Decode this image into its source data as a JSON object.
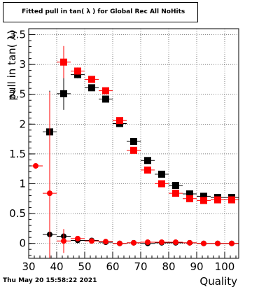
{
  "footer_text": "Thu May 20 15:58:22 2021",
  "chart_data": {
    "type": "scatter",
    "title": "Fitted pull in tan( λ ) for Global Rec All NoHits",
    "xlabel": "Quality",
    "ylabel": "pull in tan( λ)",
    "xlim": [
      30,
      105
    ],
    "ylim": [
      -0.25,
      3.6
    ],
    "xticks": [
      30,
      40,
      50,
      60,
      70,
      80,
      90,
      100
    ],
    "yticks": [
      0,
      0.5,
      1,
      1.5,
      2,
      2.5,
      3,
      3.5
    ],
    "ytick_labels": [
      "0",
      "0.5",
      "1",
      "1.5",
      "2",
      "2.5",
      "3",
      "3.5"
    ],
    "grid": true,
    "x_bin_half_width": 2.5,
    "marker_size": 10,
    "series": [
      {
        "color": "#000000",
        "marker": "square",
        "x": [
          37.5,
          42.5,
          47.5,
          52.5,
          57.5,
          62.5,
          67.5,
          72.5,
          77.5,
          82.5,
          87.5,
          92.5,
          97.5,
          102.5
        ],
        "y": [
          1.87,
          2.51,
          2.83,
          2.61,
          2.42,
          2.01,
          1.71,
          1.39,
          1.16,
          0.97,
          0.83,
          0.79,
          0.77,
          0.77
        ],
        "yerr": [
          0.69,
          0.27,
          0.06,
          0.05,
          0.04,
          0.03,
          0.03,
          0.03,
          0.02,
          0.02,
          0.02,
          0.02,
          0.02,
          0.02
        ]
      },
      {
        "color": "#ff0000",
        "marker": "square",
        "x": [
          42.5,
          47.5,
          52.5,
          57.5,
          62.5,
          67.5,
          72.5,
          77.5,
          82.5,
          87.5,
          92.5,
          97.5,
          102.5
        ],
        "y": [
          3.04,
          2.89,
          2.75,
          2.56,
          2.06,
          1.56,
          1.23,
          1.0,
          0.84,
          0.75,
          0.72,
          0.73,
          0.73
        ],
        "yerr": [
          0.27,
          0.06,
          0.05,
          0.04,
          0.03,
          0.03,
          0.03,
          0.02,
          0.02,
          0.02,
          0.02,
          0.02,
          0.02
        ]
      },
      {
        "color": "#000000",
        "marker": "circle",
        "x": [
          37.5,
          42.5,
          47.5,
          52.5,
          57.5,
          62.5,
          67.5,
          72.5,
          77.5,
          82.5,
          87.5,
          92.5,
          97.5,
          102.5
        ],
        "y": [
          0.15,
          0.12,
          0.05,
          0.05,
          0.02,
          0.0,
          0.01,
          0.0,
          0.01,
          0.01,
          0.01,
          0.0,
          0.0,
          0.0
        ],
        "yerr": [
          0.4,
          0.06,
          0.03,
          0.02,
          0.02,
          0.01,
          0.01,
          0.01,
          0.01,
          0.01,
          0.01,
          0.01,
          0.01,
          0.01
        ]
      },
      {
        "color": "#ff0000",
        "marker": "circle",
        "x": [
          32.5,
          37.5,
          42.5,
          47.5,
          52.5,
          57.5,
          62.5,
          67.5,
          72.5,
          77.5,
          82.5,
          87.5,
          92.5,
          97.5,
          102.5
        ],
        "y": [
          1.3,
          0.84,
          0.04,
          0.08,
          0.04,
          0.03,
          0.0,
          0.01,
          0.02,
          0.02,
          0.02,
          0.01,
          0.0,
          0.0,
          0.0
        ],
        "yerr": [
          0.0,
          1.7,
          0.2,
          0.04,
          0.02,
          0.02,
          0.01,
          0.01,
          0.01,
          0.01,
          0.01,
          0.01,
          0.01,
          0.01,
          0.01
        ]
      }
    ]
  }
}
